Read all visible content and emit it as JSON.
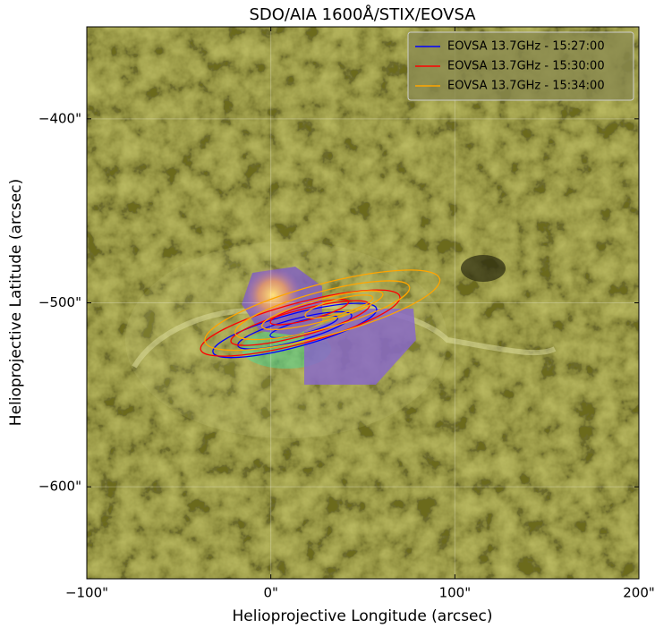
{
  "chart_data": {
    "type": "contour",
    "title": "SDO/AIA 1600Å/STIX/EOVSA",
    "xlabel": "Helioprojective Longitude (arcsec)",
    "ylabel": "Helioprojective Latitude (arcsec)",
    "xlim": [
      -100,
      200
    ],
    "ylim": [
      -650,
      -350
    ],
    "xticks": [
      {
        "value": -100,
        "label": "−100\""
      },
      {
        "value": 0,
        "label": "0\""
      },
      {
        "value": 100,
        "label": "100\""
      },
      {
        "value": 200,
        "label": "200\""
      }
    ],
    "yticks": [
      {
        "value": -600,
        "label": "−600\""
      },
      {
        "value": -500,
        "label": "−500\""
      },
      {
        "value": -400,
        "label": "−400\""
      }
    ],
    "grid": true,
    "legend": "upper right",
    "series": [
      {
        "name": "EOVSA 13.7GHz - 15:27:00",
        "color": "#0000ff",
        "contours": [
          {
            "x": 13,
            "y": -515,
            "rx": 46,
            "ry": 9,
            "angle": 15
          },
          {
            "x": 13,
            "y": -515,
            "rx": 32,
            "ry": 6,
            "angle": 15
          },
          {
            "x": 18,
            "y": -513,
            "rx": 19,
            "ry": 3.5,
            "angle": 15
          }
        ]
      },
      {
        "name": "EOVSA 13.7GHz - 15:30:00",
        "color": "#ff0000",
        "contours": [
          {
            "x": 16,
            "y": -511,
            "rx": 56,
            "ry": 11,
            "angle": 15
          },
          {
            "x": 16,
            "y": -511,
            "rx": 39,
            "ry": 7,
            "angle": 15
          },
          {
            "x": 21,
            "y": -505,
            "rx": 22,
            "ry": 4,
            "angle": 15
          }
        ]
      },
      {
        "name": "EOVSA 13.7GHz - 15:34:00",
        "color": "#ffa500",
        "contours": [
          {
            "x": 28,
            "y": -504,
            "rx": 66,
            "ry": 14,
            "angle": 15
          },
          {
            "x": 28,
            "y": -504,
            "rx": 49,
            "ry": 10,
            "angle": 15
          },
          {
            "x": 28,
            "y": -504,
            "rx": 34,
            "ry": 6,
            "angle": 15
          },
          {
            "x": 37,
            "y": -502,
            "rx": 19,
            "ry": 4,
            "angle": 15
          }
        ]
      }
    ]
  }
}
